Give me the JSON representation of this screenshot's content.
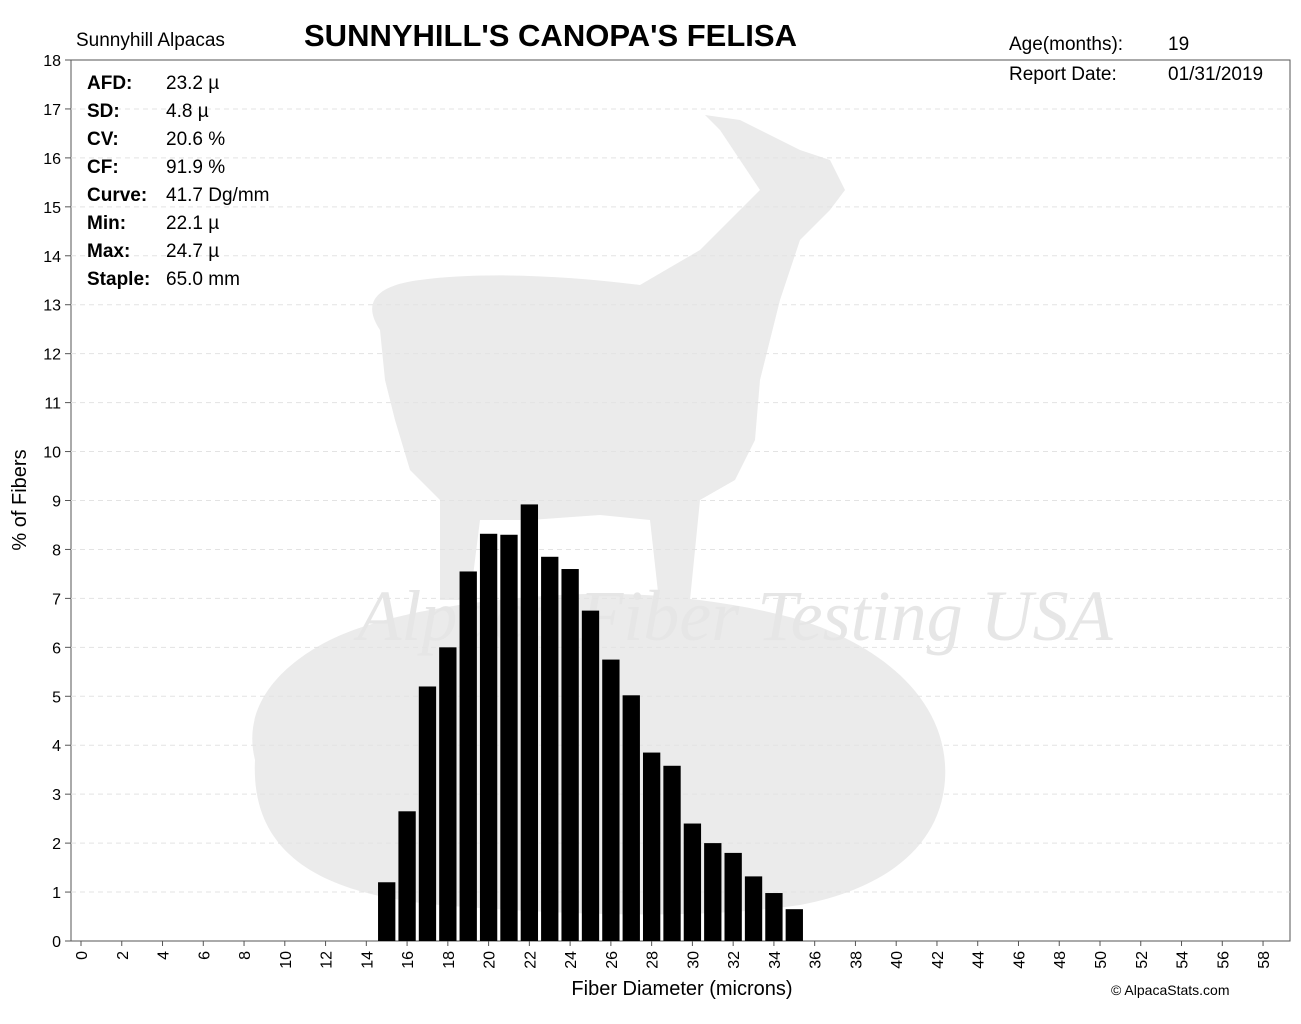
{
  "header": {
    "farm": "Sunnyhill Alpacas",
    "title": "SUNNYHILL'S CANOPA'S FELISA",
    "age_label": "Age(months):",
    "age_value": "19",
    "report_date_label": "Report Date:",
    "report_date_value": "01/31/2019"
  },
  "stats": [
    {
      "label": "AFD:",
      "value": "23.2 µ"
    },
    {
      "label": "SD:",
      "value": "4.8 µ"
    },
    {
      "label": "CV:",
      "value": "20.6 %"
    },
    {
      "label": "CF:",
      "value": "91.9 %"
    },
    {
      "label": "Curve:",
      "value": "41.7 Dg/mm"
    },
    {
      "label": "Min:",
      "value": "22.1 µ"
    },
    {
      "label": "Max:",
      "value": "24.7 µ"
    },
    {
      "label": "Staple:",
      "value": "65.0 mm"
    }
  ],
  "watermark": "Alpaca Fiber Testing USA",
  "credit": "© AlpacaStats.com",
  "colors": {
    "bar": "#000000",
    "grid": "#e3e3e3",
    "watermark": "#e9e9e9",
    "silhouette": "#ebebeb"
  },
  "chart_data": {
    "type": "bar",
    "xlabel": "Fiber Diameter (microns)",
    "ylabel": "% of Fibers",
    "xlim": [
      0,
      59
    ],
    "ylim": [
      0,
      18
    ],
    "xticks": [
      0,
      2,
      4,
      6,
      8,
      10,
      12,
      14,
      16,
      18,
      20,
      22,
      24,
      26,
      28,
      30,
      32,
      34,
      36,
      38,
      40,
      42,
      44,
      46,
      48,
      50,
      52,
      54,
      56,
      58
    ],
    "yticks": [
      0,
      1,
      2,
      3,
      4,
      5,
      6,
      7,
      8,
      9,
      10,
      11,
      12,
      13,
      14,
      15,
      16,
      17,
      18
    ],
    "grid": "horizontal dashed",
    "x": [
      15,
      16,
      17,
      18,
      19,
      20,
      21,
      22,
      23,
      24,
      25,
      26,
      27,
      28,
      29,
      30,
      31,
      32,
      33,
      34,
      35
    ],
    "values": [
      1.2,
      2.65,
      5.2,
      6.0,
      7.55,
      8.32,
      8.3,
      8.92,
      7.85,
      7.6,
      6.75,
      5.75,
      5.02,
      3.85,
      3.58,
      2.4,
      2.0,
      1.8,
      1.32,
      0.98,
      0.65
    ]
  }
}
